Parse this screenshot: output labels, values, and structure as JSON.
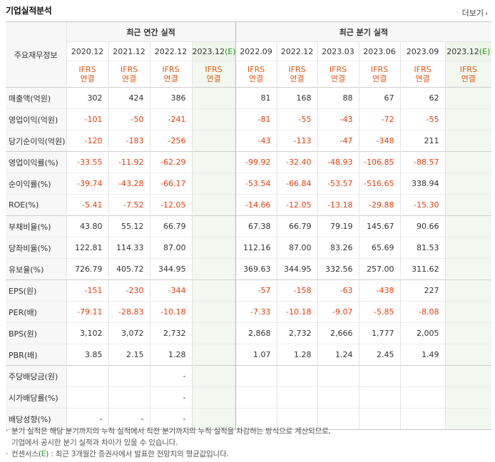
{
  "title": "기업실적분석",
  "more_label": "더보기",
  "more_arrow": "›",
  "corner_label": "주요재무정보",
  "groups": {
    "annual": "최근 연간 실적",
    "quarterly": "최근 분기 실적"
  },
  "periods": [
    "2020.12",
    "2021.12",
    "2022.12",
    "2023.12",
    "2022.09",
    "2022.12",
    "2023.03",
    "2023.06",
    "2023.09",
    "2023.12"
  ],
  "estimate_mark": "(E)",
  "ifrs_label": "IFRS",
  "consolidated_label": "연결",
  "rows": [
    {
      "label": "매출액(억원)",
      "values": [
        "302",
        "424",
        "386",
        "",
        "81",
        "168",
        "88",
        "67",
        "62",
        ""
      ]
    },
    {
      "label": "영업이익(억원)",
      "values": [
        "-101",
        "-50",
        "-241",
        "",
        "-81",
        "-55",
        "-43",
        "-72",
        "-55",
        ""
      ]
    },
    {
      "label": "당기순이익(억원)",
      "values": [
        "-120",
        "-183",
        "-256",
        "",
        "-43",
        "-113",
        "-47",
        "-348",
        "211",
        ""
      ]
    },
    {
      "label": "영업이익률(%)",
      "values": [
        "-33.55",
        "-11.92",
        "-62.29",
        "",
        "-99.92",
        "-32.40",
        "-48.93",
        "-106.85",
        "-88.57",
        ""
      ]
    },
    {
      "label": "순이익률(%)",
      "values": [
        "-39.74",
        "-43.28",
        "-66.17",
        "",
        "-53.54",
        "-66.84",
        "-53.57",
        "-516.65",
        "338.94",
        ""
      ]
    },
    {
      "label": "ROE(%)",
      "values": [
        "-5.41",
        "-7.52",
        "-12.05",
        "",
        "-14.66",
        "-12.05",
        "-13.18",
        "-29.88",
        "-15.30",
        ""
      ]
    },
    {
      "label": "부채비율(%)",
      "values": [
        "43.80",
        "55.12",
        "66.79",
        "",
        "67.38",
        "66.79",
        "79.19",
        "145.67",
        "90.66",
        ""
      ]
    },
    {
      "label": "당좌비율(%)",
      "values": [
        "122.81",
        "114.33",
        "87.00",
        "",
        "112.16",
        "87.00",
        "83.26",
        "65.69",
        "81.53",
        ""
      ]
    },
    {
      "label": "유보율(%)",
      "values": [
        "726.79",
        "405.72",
        "344.95",
        "",
        "369.63",
        "344.95",
        "332.56",
        "257.00",
        "311.62",
        ""
      ]
    },
    {
      "label": "EPS(원)",
      "values": [
        "-151",
        "-230",
        "-344",
        "",
        "-57",
        "-158",
        "-63",
        "-438",
        "227",
        ""
      ]
    },
    {
      "label": "PER(배)",
      "values": [
        "-79.11",
        "-28.83",
        "-10.18",
        "",
        "-7.33",
        "-10.18",
        "-9.07",
        "-5.85",
        "-8.08",
        ""
      ]
    },
    {
      "label": "BPS(원)",
      "values": [
        "3,102",
        "3,072",
        "2,732",
        "",
        "2,868",
        "2,732",
        "2,666",
        "1,777",
        "2,005",
        ""
      ]
    },
    {
      "label": "PBR(배)",
      "values": [
        "3.85",
        "2.15",
        "1.28",
        "",
        "1.07",
        "1.28",
        "1.24",
        "2.45",
        "1.49",
        ""
      ]
    },
    {
      "label": "주당배당금(원)",
      "values": [
        "",
        "",
        "-",
        "",
        "",
        "",
        "",
        "",
        "",
        ""
      ]
    },
    {
      "label": "시가배당률(%)",
      "values": [
        "",
        "",
        "-",
        "",
        "",
        "",
        "",
        "",
        "",
        ""
      ]
    },
    {
      "label": "배당성향(%)",
      "values": [
        "-",
        "-",
        "-",
        "",
        "",
        "",
        "",
        "",
        "",
        ""
      ]
    }
  ],
  "notes": {
    "line1": "분기 실적은 해당 분기까지의 누적 실적에서 직전 분기까지의 누적 실적을 차감하는 방식으로 계산되므로,",
    "line2": "기업에서 공시한 분기 실적과 차이가 있을 수 있습니다.",
    "line3_prefix": "컨센서스(",
    "line3_mark": "E",
    "line3_suffix": ") : 최근 3개월간 증권사에서 발표한 전망치의 평균값입니다.",
    "bullet": "·"
  }
}
